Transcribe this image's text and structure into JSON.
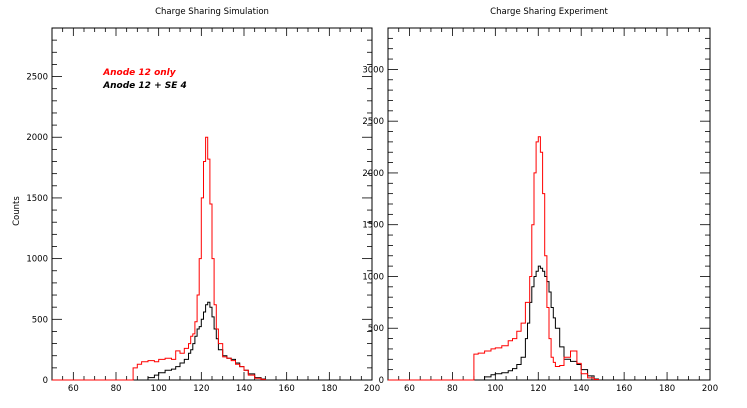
{
  "chart_data": [
    {
      "type": "line",
      "title": "Charge Sharing Simulation",
      "xlabel": "",
      "ylabel": "Counts",
      "xlim": [
        50,
        200
      ],
      "ylim": [
        0,
        2900
      ],
      "xticks": [
        60,
        80,
        100,
        120,
        140,
        160,
        180,
        200
      ],
      "yticks": [
        0,
        500,
        1000,
        1500,
        2000,
        2500
      ],
      "legend": [
        {
          "label": "Anode  12 only",
          "color": "#ff0000"
        },
        {
          "label": "Anode  12 + SE 4",
          "color": "#000000"
        }
      ],
      "series": [
        {
          "name": "Anode  12 only",
          "color": "#ff0000",
          "x": [
            50,
            86,
            88,
            90,
            92,
            95,
            98,
            100,
            103,
            106,
            108,
            110,
            112,
            114,
            115,
            116,
            117,
            118,
            119,
            120,
            121,
            122,
            123,
            124,
            125,
            126,
            127,
            128,
            130,
            132,
            134,
            136,
            138,
            140,
            142,
            145,
            148,
            150
          ],
          "y": [
            0,
            0,
            100,
            130,
            150,
            160,
            150,
            170,
            180,
            170,
            240,
            220,
            260,
            300,
            360,
            380,
            480,
            700,
            1000,
            1500,
            1800,
            2000,
            1820,
            1450,
            1000,
            620,
            420,
            300,
            190,
            180,
            160,
            130,
            110,
            80,
            40,
            15,
            5,
            0
          ]
        },
        {
          "name": "Anode  12 + SE 4",
          "color": "#000000",
          "x": [
            50,
            92,
            95,
            98,
            100,
            103,
            106,
            108,
            110,
            112,
            114,
            115,
            116,
            117,
            118,
            119,
            120,
            121,
            122,
            123,
            124,
            125,
            126,
            127,
            128,
            130,
            132,
            134,
            136,
            138,
            140,
            142,
            145,
            148,
            150
          ],
          "y": [
            0,
            0,
            20,
            40,
            60,
            80,
            90,
            110,
            140,
            170,
            220,
            250,
            300,
            360,
            420,
            440,
            500,
            560,
            620,
            640,
            600,
            520,
            420,
            340,
            250,
            200,
            180,
            170,
            140,
            110,
            80,
            50,
            20,
            8,
            0
          ]
        }
      ]
    },
    {
      "type": "line",
      "title": "Charge Sharing Experiment",
      "xlabel": "",
      "ylabel": "",
      "xlim": [
        50,
        200
      ],
      "ylim": [
        0,
        3400
      ],
      "xticks": [
        60,
        80,
        100,
        120,
        140,
        160,
        180,
        200
      ],
      "yticks": [
        0,
        500,
        1000,
        1500,
        2000,
        2500,
        3000
      ],
      "series": [
        {
          "name": "Anode  12 only",
          "color": "#ff0000",
          "x": [
            50,
            88,
            90,
            92,
            95,
            98,
            100,
            103,
            106,
            108,
            110,
            112,
            114,
            116,
            117,
            118,
            119,
            120,
            121,
            122,
            123,
            124,
            125,
            126,
            127,
            128,
            130,
            132,
            135,
            138,
            140,
            143,
            146,
            148
          ],
          "y": [
            0,
            0,
            250,
            260,
            280,
            300,
            310,
            330,
            380,
            400,
            470,
            550,
            750,
            1000,
            1500,
            2000,
            2300,
            2350,
            2200,
            1800,
            1200,
            700,
            400,
            220,
            170,
            130,
            140,
            220,
            280,
            160,
            60,
            20,
            5,
            0
          ]
        },
        {
          "name": "Anode  12 + SE 4",
          "color": "#000000",
          "x": [
            50,
            92,
            95,
            98,
            100,
            103,
            106,
            108,
            110,
            112,
            114,
            115,
            116,
            117,
            118,
            119,
            120,
            121,
            122,
            123,
            124,
            125,
            126,
            127,
            128,
            130,
            132,
            135,
            138,
            140,
            143,
            146,
            148
          ],
          "y": [
            0,
            0,
            30,
            50,
            60,
            70,
            90,
            110,
            150,
            220,
            400,
            550,
            750,
            900,
            1000,
            1050,
            1100,
            1080,
            1050,
            1000,
            950,
            850,
            700,
            600,
            500,
            320,
            200,
            180,
            150,
            100,
            40,
            10,
            0
          ]
        }
      ]
    }
  ]
}
